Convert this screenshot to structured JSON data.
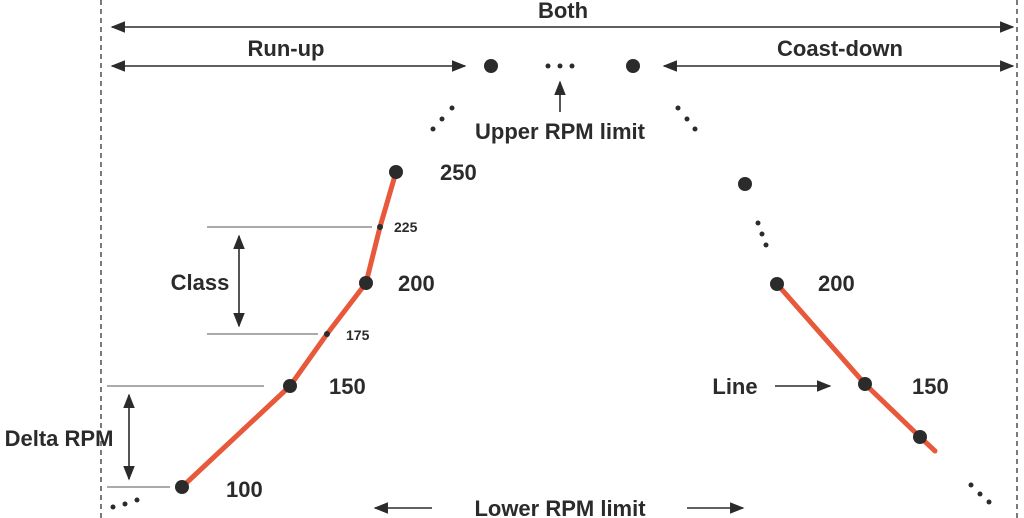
{
  "labels": {
    "both": "Both",
    "run_up": "Run-up",
    "coast_down": "Coast-down",
    "upper_rpm_limit": "Upper RPM limit",
    "lower_rpm_limit": "Lower RPM limit",
    "class": "Class",
    "delta_rpm": "Delta RPM",
    "line": "Line"
  },
  "run_up_points": {
    "p100": "100",
    "p150": "150",
    "p175": "175",
    "p200": "200",
    "p225": "225",
    "p250": "250"
  },
  "coast_down_points": {
    "p200": "200",
    "p150": "150"
  },
  "colors": {
    "curve": "#e8583a",
    "ink": "#2b2b2b"
  }
}
